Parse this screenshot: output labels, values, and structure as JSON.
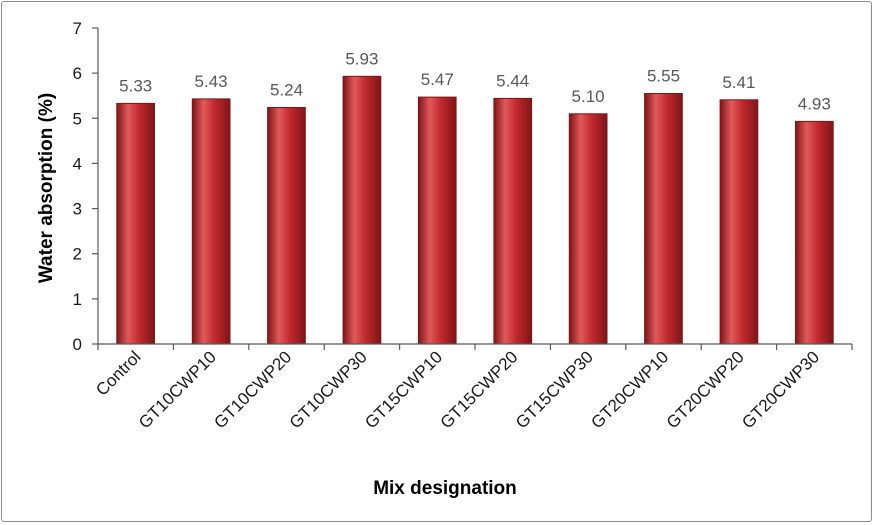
{
  "chart_data": {
    "type": "bar",
    "title": "",
    "xlabel": "Mix designation",
    "ylabel": "Water absorption (%)",
    "ylim": [
      0,
      7
    ],
    "yticks": [
      "0",
      "1",
      "2",
      "3",
      "4",
      "5",
      "6",
      "7"
    ],
    "grid": false,
    "legend": "none",
    "categories": [
      "Control",
      "GT10CWP10",
      "GT10CWP20",
      "GT10CWP30",
      "GT15CWP10",
      "GT15CWP20",
      "GT15CWP30",
      "GT20CWP10",
      "GT20CWP20",
      "GT20CWP30"
    ],
    "values": [
      5.33,
      5.43,
      5.24,
      5.93,
      5.47,
      5.44,
      5.1,
      5.55,
      5.41,
      4.93
    ],
    "data_labels": [
      "5.33",
      "5.43",
      "5.24",
      "5.93",
      "5.47",
      "5.44",
      "5.10",
      "5.55",
      "5.41",
      "4.93"
    ],
    "colors": {
      "bar": "#c0282d",
      "bar_highlight": "#e05a5a",
      "bar_shadow": "#7f1518",
      "axis": "#595959"
    }
  }
}
